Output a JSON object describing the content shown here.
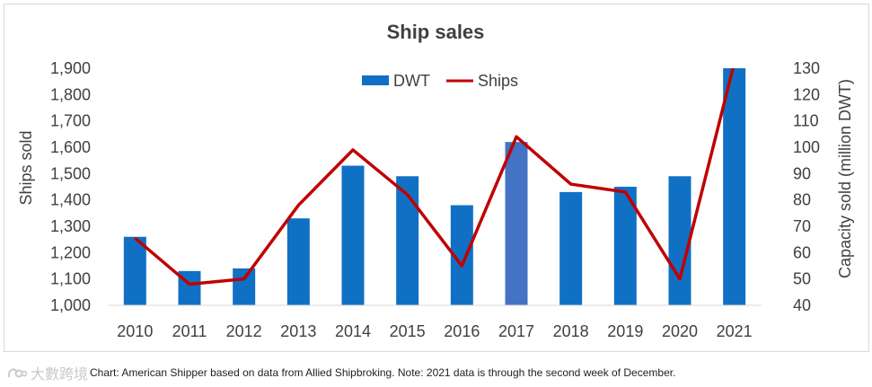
{
  "chart_data": {
    "type": "bar+line",
    "title": "Ship sales",
    "categories": [
      "2010",
      "2011",
      "2012",
      "2013",
      "2014",
      "2015",
      "2016",
      "2017",
      "2018",
      "2019",
      "2020",
      "2021"
    ],
    "series": [
      {
        "name": "DWT",
        "type": "bar",
        "axis": "right",
        "color": "#1070c4",
        "highlight_color": "#4472c4",
        "highlight_index": 7,
        "values": [
          66,
          53,
          54,
          73,
          93,
          89,
          78,
          102,
          83,
          85,
          89,
          130
        ]
      },
      {
        "name": "Ships",
        "type": "line",
        "axis": "left",
        "color": "#c00000",
        "values": [
          1255,
          1080,
          1100,
          1380,
          1590,
          1420,
          1150,
          1640,
          1460,
          1430,
          1100,
          1920
        ]
      }
    ],
    "ylabel_left": "Ships sold",
    "ylabel_right": "Capacity sold (million DWT)",
    "ylim_left": [
      1000,
      1900
    ],
    "ylim_right": [
      40,
      130
    ],
    "yticks_left": [
      "1,000",
      "1,100",
      "1,200",
      "1,300",
      "1,400",
      "1,500",
      "1,600",
      "1,700",
      "1,800",
      "1,900"
    ],
    "yticks_right": [
      "40",
      "50",
      "60",
      "70",
      "80",
      "90",
      "100",
      "110",
      "120",
      "130"
    ],
    "grid": false,
    "legend_position": "top-center"
  },
  "caption": "Chart: American Shipper based on data from Allied Shipbroking. Note: 2021 data is through the second week of December.",
  "watermark": {
    "text": "大數跨境",
    "icon": "logo-icon"
  }
}
